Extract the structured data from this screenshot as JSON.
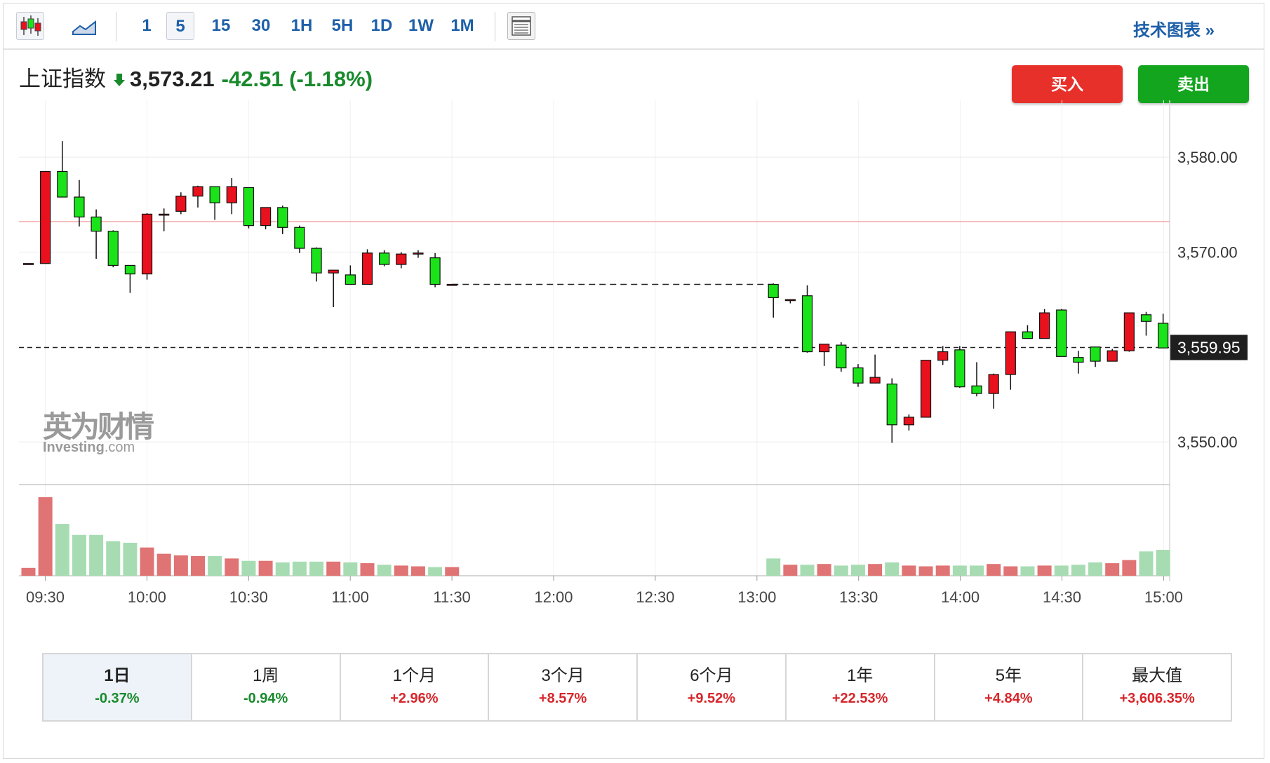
{
  "toolbar": {
    "intervals": [
      "1",
      "5",
      "15",
      "30",
      "1H",
      "5H",
      "1D",
      "1W",
      "1M"
    ],
    "active_interval": "5",
    "tech_chart_label": "技术图表 »"
  },
  "quote": {
    "name": "上证指数",
    "price": "3,573.21",
    "change": "-42.51 (-1.18%)",
    "direction": "down"
  },
  "actions": {
    "buy_label": "买入",
    "sell_label": "卖出"
  },
  "watermark": {
    "cn": "英为财情",
    "en": "Investing",
    "en_suffix": ".com"
  },
  "periods": [
    {
      "label": "1日",
      "value": "-0.37%",
      "dir": "down",
      "active": true
    },
    {
      "label": "1周",
      "value": "-0.94%",
      "dir": "down"
    },
    {
      "label": "1个月",
      "value": "+2.96%",
      "dir": "up"
    },
    {
      "label": "3个月",
      "value": "+8.57%",
      "dir": "up"
    },
    {
      "label": "6个月",
      "value": "+9.52%",
      "dir": "up"
    },
    {
      "label": "1年",
      "value": "+22.53%",
      "dir": "up"
    },
    {
      "label": "5年",
      "value": "+4.84%",
      "dir": "up"
    },
    {
      "label": "最大值",
      "value": "+3,606.35%",
      "dir": "up"
    }
  ],
  "colors": {
    "up_candle": "#e8111d",
    "down_candle": "#1ae31a",
    "up_volume": "#e07373",
    "down_volume": "#a7dcb3",
    "accent": "#1d5fa8"
  },
  "chart_data": {
    "type": "candlestick",
    "interval": "5",
    "y_ticks": [
      3550.0,
      3570.0,
      3580.0
    ],
    "y_tick_labels": [
      "3,550.00",
      "3,570.00",
      "3,580.00"
    ],
    "ylim": [
      3545.5,
      3586.0
    ],
    "last_price": 3559.95,
    "last_price_label": "3,559.95",
    "prev_close_line": 3573.21,
    "x_tick_labels": [
      "09:30",
      "10:00",
      "10:30",
      "11:00",
      "11:30",
      "12:00",
      "12:30",
      "13:00",
      "13:30",
      "14:00",
      "14:30",
      "15:00"
    ],
    "grid": true,
    "morning_candles": [
      [
        3568.8,
        3568.8,
        3568.8,
        3568.8
      ],
      [
        3568.8,
        3578.5,
        3568.8,
        3578.5
      ],
      [
        3578.5,
        3581.7,
        3575.8,
        3575.8
      ],
      [
        3575.8,
        3577.6,
        3572.7,
        3573.7
      ],
      [
        3573.7,
        3574.5,
        3569.3,
        3572.2
      ],
      [
        3572.2,
        3572.3,
        3568.4,
        3568.6
      ],
      [
        3568.6,
        3568.6,
        3565.7,
        3567.7
      ],
      [
        3567.7,
        3574.1,
        3567.1,
        3574.0
      ],
      [
        3574.0,
        3574.6,
        3572.2,
        3574.0
      ],
      [
        3574.3,
        3576.3,
        3574.0,
        3575.9
      ],
      [
        3575.9,
        3577.0,
        3574.7,
        3576.9
      ],
      [
        3576.9,
        3576.9,
        3573.4,
        3575.2
      ],
      [
        3575.2,
        3577.8,
        3574.0,
        3576.9
      ],
      [
        3576.8,
        3576.8,
        3572.5,
        3572.8
      ],
      [
        3572.8,
        3574.7,
        3572.4,
        3574.7
      ],
      [
        3574.7,
        3574.9,
        3571.9,
        3572.6
      ],
      [
        3572.6,
        3572.8,
        3569.9,
        3570.4
      ],
      [
        3570.4,
        3570.5,
        3566.9,
        3567.8
      ],
      [
        3567.8,
        3568.1,
        3564.2,
        3568.1
      ],
      [
        3567.6,
        3568.6,
        3566.6,
        3566.6
      ],
      [
        3566.6,
        3570.3,
        3566.6,
        3569.9
      ],
      [
        3569.9,
        3570.2,
        3568.5,
        3568.7
      ],
      [
        3568.7,
        3570.0,
        3568.3,
        3569.8
      ],
      [
        3569.9,
        3570.2,
        3569.4,
        3569.9
      ],
      [
        3569.4,
        3569.9,
        3566.3,
        3566.6
      ],
      [
        3566.6,
        3566.6,
        3566.6,
        3566.6
      ]
    ],
    "afternoon_candles": [
      [
        3566.6,
        3566.7,
        3563.1,
        3565.2
      ],
      [
        3565.0,
        3565.0,
        3564.6,
        3565.0
      ],
      [
        3565.4,
        3566.5,
        3559.4,
        3559.5
      ],
      [
        3559.5,
        3560.3,
        3558.0,
        3560.3
      ],
      [
        3560.2,
        3560.5,
        3557.4,
        3557.8
      ],
      [
        3557.8,
        3558.2,
        3555.8,
        3556.2
      ],
      [
        3556.2,
        3559.2,
        3556.2,
        3556.8
      ],
      [
        3556.1,
        3556.7,
        3549.9,
        3551.8
      ],
      [
        3551.8,
        3552.9,
        3551.2,
        3552.6
      ],
      [
        3552.6,
        3558.6,
        3552.6,
        3558.6
      ],
      [
        3558.6,
        3560.1,
        3558.1,
        3559.5
      ],
      [
        3559.7,
        3560.1,
        3555.7,
        3555.8
      ],
      [
        3555.9,
        3558.4,
        3554.8,
        3555.1
      ],
      [
        3555.1,
        3557.2,
        3553.5,
        3557.1
      ],
      [
        3557.1,
        3561.6,
        3555.5,
        3561.6
      ],
      [
        3561.6,
        3562.3,
        3561.0,
        3560.9
      ],
      [
        3560.9,
        3564.0,
        3561.5,
        3563.6
      ],
      [
        3563.9,
        3564.0,
        3560.1,
        3559.0
      ],
      [
        3558.9,
        3559.6,
        3557.2,
        3558.4
      ],
      [
        3560.0,
        3560.0,
        3557.9,
        3558.5
      ],
      [
        3558.5,
        3559.8,
        3558.5,
        3559.6
      ],
      [
        3559.6,
        3563.1,
        3559.5,
        3563.6
      ],
      [
        3563.4,
        3563.7,
        3561.2,
        3562.7
      ],
      [
        3562.5,
        3563.5,
        3559.9,
        3559.9
      ]
    ],
    "morning_volume": [
      1,
      10,
      6.6,
      5.2,
      5.2,
      4.4,
      4.2,
      3.6,
      2.8,
      2.6,
      2.5,
      2.5,
      2.2,
      1.9,
      1.9,
      1.7,
      1.8,
      1.8,
      1.8,
      1.7,
      1.6,
      1.4,
      1.3,
      1.2,
      1.1,
      1.1
    ],
    "afternoon_volume": [
      2.2,
      1.4,
      1.4,
      1.5,
      1.3,
      1.4,
      1.5,
      1.7,
      1.3,
      1.2,
      1.3,
      1.3,
      1.3,
      1.5,
      1.2,
      1.2,
      1.3,
      1.3,
      1.4,
      1.7,
      1.6,
      2.0,
      3.1,
      3.3
    ]
  }
}
